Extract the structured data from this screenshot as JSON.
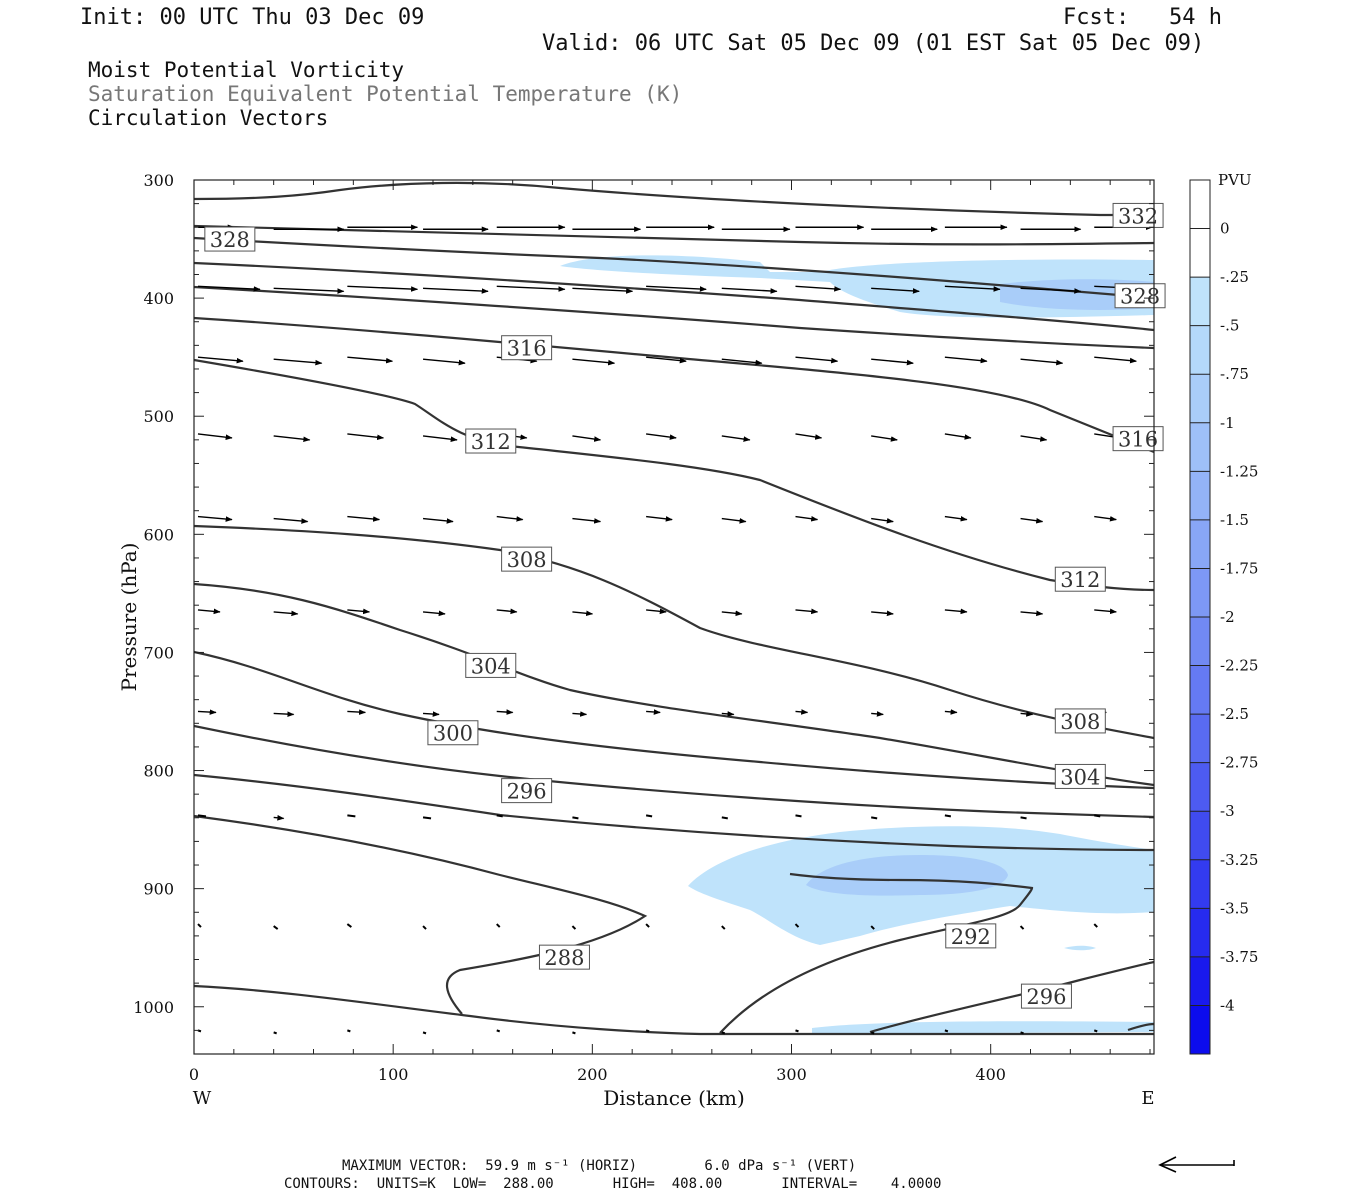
{
  "header": {
    "init": "Init: 00 UTC Thu 03 Dec 09",
    "fcst": "Fcst:   54 h",
    "valid": "Valid: 06 UTC Sat 05 Dec 09 (01 EST Sat 05 Dec 09)"
  },
  "titles": {
    "line1": "Moist Potential Vorticity",
    "line2": "Saturation Equivalent Potential Temperature (K)",
    "line3": "Circulation Vectors"
  },
  "footer": {
    "line1": "MAXIMUM VECTOR:  59.9 m s⁻¹ (HORIZ)        6.0 dPa s⁻¹ (VERT)",
    "line2": "CONTOURS:  UNITS=K  LOW=  288.00       HIGH=  408.00       INTERVAL=    4.0000"
  },
  "chart_data": {
    "type": "contour",
    "xlabel": "Distance (km)",
    "ylabel": "Pressure (hPa)",
    "xlim": [
      0,
      482
    ],
    "ylim": [
      1040,
      300
    ],
    "x_ticks": [
      0,
      100,
      200,
      300,
      400
    ],
    "y_ticks": [
      300,
      400,
      500,
      600,
      700,
      800,
      900,
      1000
    ],
    "x_end_labels": {
      "left": "W",
      "right": "E"
    },
    "colorbar": {
      "title": "PVU",
      "levels": [
        "0",
        "-.25",
        "-.5",
        "-.75",
        "-1",
        "-1.25",
        "-1.5",
        "-1.75",
        "-2",
        "-2.25",
        "-2.5",
        "-2.75",
        "-3",
        "-3.25",
        "-3.5",
        "-3.75",
        "-4"
      ],
      "colors": [
        "#ffffff",
        "#ffffff",
        "#bfe3fb",
        "#b4d9fa",
        "#a9cdf9",
        "#9ec0f8",
        "#93b3f7",
        "#88a6f6",
        "#7d98f5",
        "#7189f4",
        "#657af3",
        "#596bf2",
        "#4d5bf1",
        "#404bf0",
        "#333bf0",
        "#262bef",
        "#1919ee",
        "#0c0cee"
      ]
    },
    "contour_labels": [
      {
        "value": "332",
        "x": 474,
        "p": 330
      },
      {
        "value": "328",
        "x": 18,
        "p": 350
      },
      {
        "value": "328",
        "x": 475,
        "p": 398
      },
      {
        "value": "316",
        "x": 167,
        "p": 442
      },
      {
        "value": "316",
        "x": 474,
        "p": 519
      },
      {
        "value": "312",
        "x": 149,
        "p": 521
      },
      {
        "value": "312",
        "x": 445,
        "p": 638
      },
      {
        "value": "308",
        "x": 167,
        "p": 621
      },
      {
        "value": "308",
        "x": 445,
        "p": 758
      },
      {
        "value": "304",
        "x": 149,
        "p": 711
      },
      {
        "value": "304",
        "x": 445,
        "p": 805
      },
      {
        "value": "300",
        "x": 130,
        "p": 768
      },
      {
        "value": "296",
        "x": 167,
        "p": 817
      },
      {
        "value": "296",
        "x": 428,
        "p": 991
      },
      {
        "value": "292",
        "x": 390,
        "p": 940
      },
      {
        "value": "288",
        "x": 186,
        "p": 958
      }
    ],
    "reference_vector": {
      "direction": "west"
    }
  }
}
